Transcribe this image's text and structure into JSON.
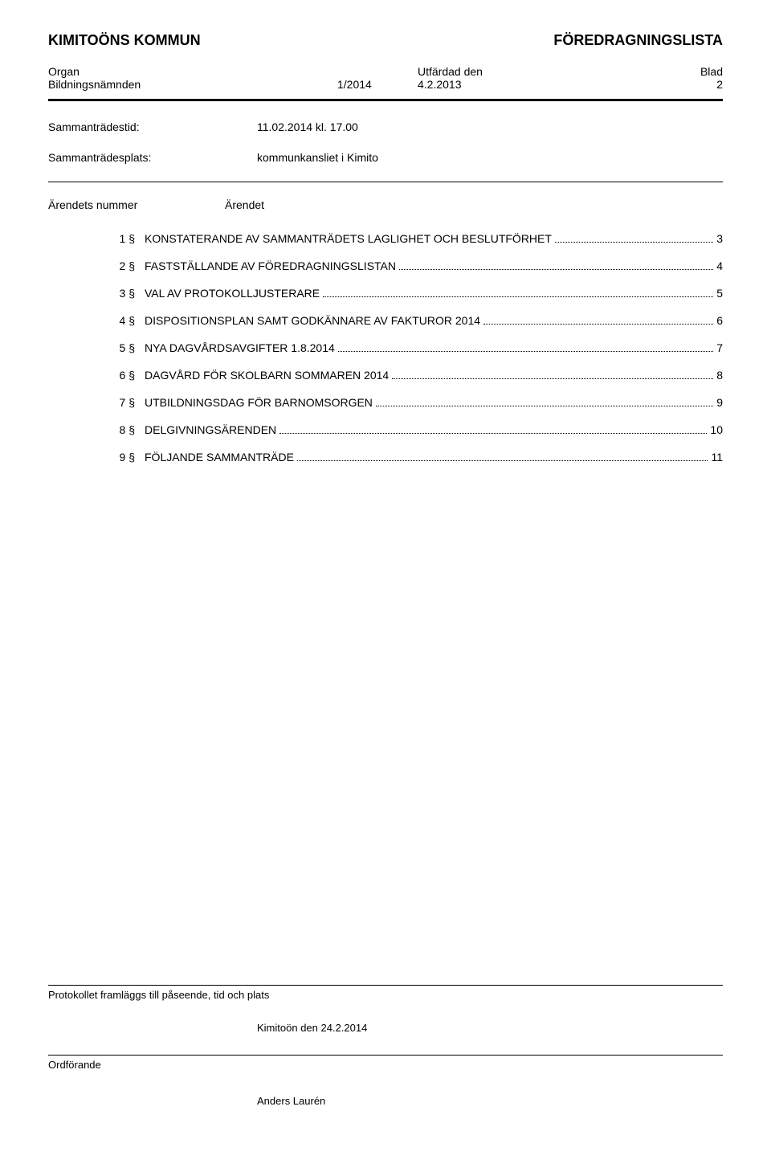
{
  "header": {
    "left": "KIMITOÖNS KOMMUN",
    "right": "FÖREDRAGNINGSLISTA"
  },
  "subheader": {
    "organ_label": "Organ",
    "organ_value": "Bildningsnämnden",
    "num": "1/2014",
    "date_label": "Utfärdad den",
    "date_value": "4.2.2013",
    "blad_label": "Blad",
    "blad_value": "2"
  },
  "meeting": {
    "time_label": "Sammanträdestid:",
    "time_value": "11.02.2014 kl. 17.00",
    "place_label": "Sammanträdesplats:",
    "place_value": "kommunkansliet i Kimito"
  },
  "agenda": {
    "col1": "Ärendets nummer",
    "col2": "Ärendet",
    "items": [
      {
        "num": "1 §",
        "title": "KONSTATERANDE AV SAMMANTRÄDETS LAGLIGHET OCH BESLUTFÖRHET",
        "page": "3"
      },
      {
        "num": "2 §",
        "title": "FASTSTÄLLANDE AV FÖREDRAGNINGSLISTAN",
        "page": "4"
      },
      {
        "num": "3 §",
        "title": "VAL AV PROTOKOLLJUSTERARE",
        "page": "5"
      },
      {
        "num": "4 §",
        "title": "DISPOSITIONSPLAN SAMT GODKÄNNARE AV FAKTUROR 2014",
        "page": "6"
      },
      {
        "num": "5 §",
        "title": "NYA DAGVÅRDSAVGIFTER 1.8.2014",
        "page": "7"
      },
      {
        "num": "6 §",
        "title": "DAGVÅRD FÖR SKOLBARN SOMMAREN 2014",
        "page": "8"
      },
      {
        "num": "7 §",
        "title": "UTBILDNINGSDAG FÖR BARNOMSORGEN",
        "page": "9"
      },
      {
        "num": "8 §",
        "title": "DELGIVNINGSÄRENDEN",
        "page": "10"
      },
      {
        "num": "9 §",
        "title": "FÖLJANDE SAMMANTRÄDE",
        "page": "11"
      }
    ]
  },
  "footer": {
    "protocol_label": "Protokollet framläggs till påseende, tid och plats",
    "protocol_value": "Kimitoön den 24.2.2014",
    "chairman_label": "Ordförande",
    "chairman_name": "Anders Laurén"
  }
}
